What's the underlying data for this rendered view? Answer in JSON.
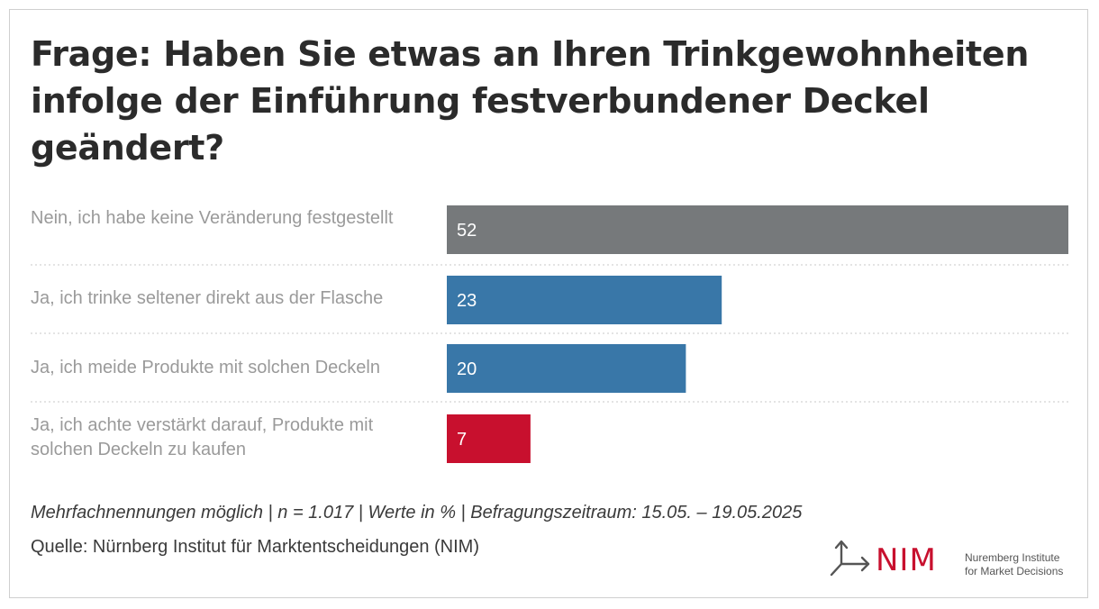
{
  "title": "Frage: Haben Sie etwas an Ihren Trinkgewohnheiten infolge der Einführung festverbundener Deckel geändert?",
  "chart_data": {
    "type": "bar",
    "orientation": "horizontal",
    "title": "Frage: Haben Sie etwas an Ihren Trinkgewohnheiten infolge der Einführung festverbundener Deckel geändert?",
    "categories": [
      "Nein, ich habe keine Veränderung festgestellt",
      "Ja, ich trinke seltener direkt aus der Flasche",
      "Ja, ich meide Produkte mit solchen Deckeln",
      "Ja, ich achte verstärkt darauf, Produkte mit solchen Deckeln zu kaufen"
    ],
    "values": [
      52,
      23,
      20,
      7
    ],
    "colors": [
      "#76797b",
      "#3977a8",
      "#3977a8",
      "#c8102e"
    ],
    "unit": "%",
    "xlim": [
      0,
      52
    ],
    "grid": false,
    "legend": "none"
  },
  "footnote": "Mehrfachnennungen möglich | n = 1.017 | Werte in % | Befragungszeitraum: 15.05. – 19.05.2025",
  "source": "Quelle: Nürnberg Institut für Marktentscheidungen (NIM)",
  "logo": {
    "name": "NIM",
    "line1": "Nuremberg Institute",
    "line2": "for Market Decisions",
    "icon": "nim-arrows-icon",
    "color": "#c8102e"
  }
}
